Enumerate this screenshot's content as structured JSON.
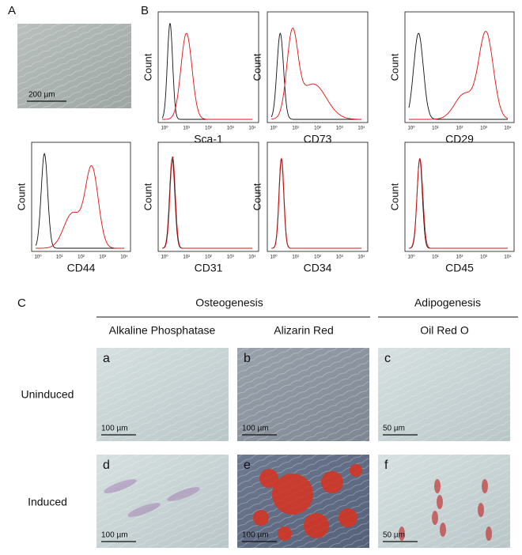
{
  "panel_a": {
    "label": "A",
    "scale_bar": "200 µm"
  },
  "panel_b": {
    "label": "B",
    "y_label": "Count",
    "x_ticks": [
      "10⁰",
      "10¹",
      "10²",
      "10³",
      "10⁴"
    ],
    "markers": [
      "Sca-1",
      "CD73",
      "CD29",
      "CD44",
      "CD31",
      "CD34",
      "CD45"
    ]
  },
  "panel_c": {
    "label": "C",
    "groups": [
      "Osteogenesis",
      "Adipogenesis"
    ],
    "stains": [
      "Alkaline Phosphatase",
      "Alizarin Red",
      "Oil Red O"
    ],
    "rows": [
      "Uninduced",
      "Induced"
    ],
    "images": [
      {
        "letter": "a",
        "scale_bar": "100 µm"
      },
      {
        "letter": "b",
        "scale_bar": "100 µm"
      },
      {
        "letter": "c",
        "scale_bar": "50 µm"
      },
      {
        "letter": "d",
        "scale_bar": "100 µm"
      },
      {
        "letter": "e",
        "scale_bar": "100 µm"
      },
      {
        "letter": "f",
        "scale_bar": "50 µm"
      }
    ]
  }
}
